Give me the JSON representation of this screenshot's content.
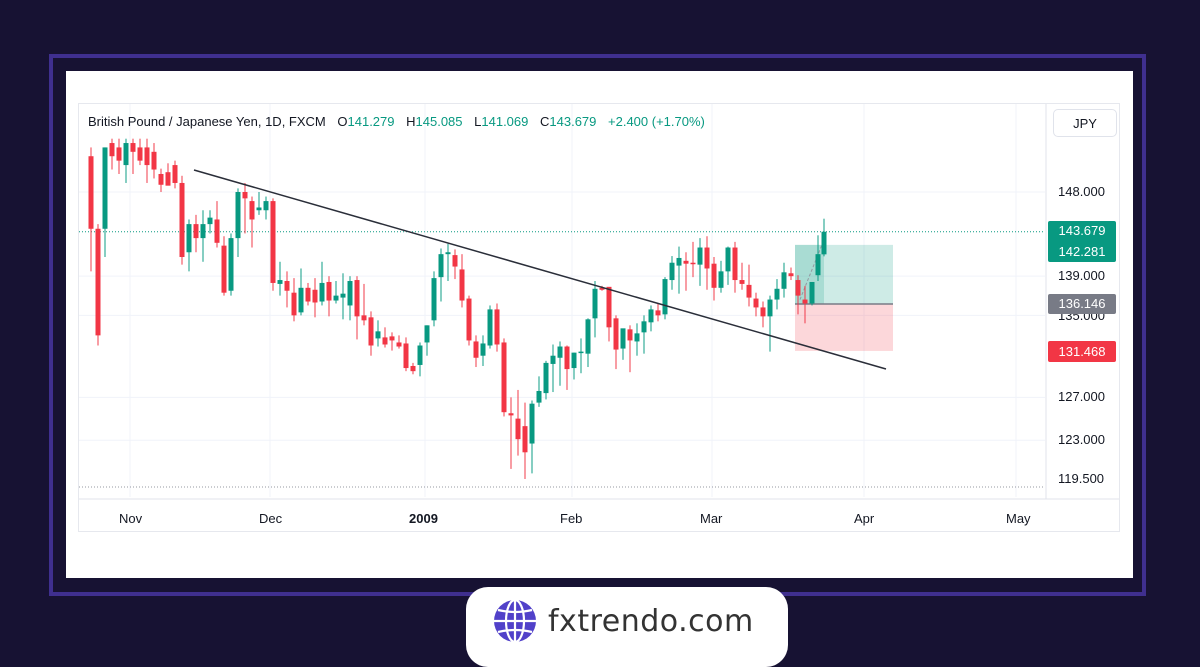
{
  "brand": {
    "text": "fxtrendo.com",
    "icon": "globe-icon"
  },
  "legend": {
    "symbol": "British Pound / Japanese Yen, 1D, FXCM",
    "o_label": "O",
    "o": "141.279",
    "h_label": "H",
    "h": "145.085",
    "l_label": "L",
    "l": "141.069",
    "c_label": "C",
    "c": "143.679",
    "change": "+2.400 (+1.70%)"
  },
  "currency_button": "JPY",
  "y_axis": {
    "ticks": [
      "148.000",
      "139.000",
      "135.000",
      "127.000",
      "123.000",
      "119.500"
    ]
  },
  "badges": {
    "last_price": "143.679",
    "entry_target": "142.281",
    "entry": "136.146",
    "stop": "131.468"
  },
  "x_axis": {
    "ticks": [
      "Nov",
      "Dec",
      "2009",
      "Feb",
      "Mar",
      "Apr",
      "May"
    ]
  },
  "colors": {
    "up": "#089981",
    "down": "#f23645",
    "frame": "#3f2f8f",
    "background": "#171233",
    "profit_zone": "#a8dcd6",
    "loss_zone": "#fcd5d7"
  },
  "chart_data": {
    "type": "candlestick",
    "title": "British Pound / Japanese Yen, 1D, FXCM",
    "ylabel": "JPY",
    "yscale": "log",
    "ylim": [
      118.5,
      152.5
    ],
    "x_ticks": [
      "Nov",
      "Dec",
      "2009",
      "Feb",
      "Mar",
      "Apr",
      "May"
    ],
    "y_ticks": [
      148.0,
      139.0,
      135.0,
      127.0,
      123.0,
      119.5
    ],
    "last": {
      "open": 141.279,
      "high": 145.085,
      "low": 141.069,
      "close": 143.679,
      "change": 2.4,
      "change_pct": 1.7
    },
    "trendline": {
      "from": {
        "x": 194,
        "price": 150.2
      },
      "to": {
        "x": 886,
        "price": 130.0
      }
    },
    "position": {
      "type": "long",
      "entry": 136.146,
      "target": 142.281,
      "stop": 131.468
    },
    "candles": [
      {
        "x": 91,
        "o": 152.0,
        "h": 153.0,
        "c": 144.0,
        "l": 139.5
      },
      {
        "x": 98,
        "o": 144.0,
        "h": 144.5,
        "c": 133.0,
        "l": 132.0
      },
      {
        "x": 105,
        "o": 144.0,
        "h": 153.0,
        "c": 153.0,
        "l": 141.0
      },
      {
        "x": 112,
        "o": 153.5,
        "h": 154.0,
        "c": 152.0,
        "l": 150.5
      },
      {
        "x": 119,
        "o": 153.0,
        "h": 154.0,
        "c": 151.5,
        "l": 150.0
      },
      {
        "x": 126,
        "o": 151.0,
        "h": 154.0,
        "c": 153.5,
        "l": 149.0
      },
      {
        "x": 133,
        "o": 153.5,
        "h": 154.0,
        "c": 152.5,
        "l": 150.0
      },
      {
        "x": 140,
        "o": 153.0,
        "h": 154.0,
        "c": 151.5,
        "l": 151.0
      },
      {
        "x": 147,
        "o": 153.0,
        "h": 154.0,
        "c": 151.0,
        "l": 149.0
      },
      {
        "x": 154,
        "o": 152.5,
        "h": 153.5,
        "c": 150.5,
        "l": 149.5
      },
      {
        "x": 161,
        "o": 150.0,
        "h": 150.6,
        "c": 148.8,
        "l": 148.0
      },
      {
        "x": 168,
        "o": 150.2,
        "h": 151.2,
        "c": 148.7,
        "l": 149.2
      },
      {
        "x": 175,
        "o": 151.0,
        "h": 151.5,
        "c": 149.0,
        "l": 148.4
      },
      {
        "x": 182,
        "o": 149.0,
        "h": 149.8,
        "c": 141.0,
        "l": 140.2
      },
      {
        "x": 189,
        "o": 141.5,
        "h": 145.0,
        "c": 144.5,
        "l": 139.5
      },
      {
        "x": 196,
        "o": 144.5,
        "h": 145.5,
        "c": 143.0,
        "l": 141.5
      },
      {
        "x": 203,
        "o": 143.0,
        "h": 146.0,
        "c": 144.5,
        "l": 140.5
      },
      {
        "x": 210,
        "o": 144.5,
        "h": 146.0,
        "c": 145.2,
        "l": 143.5
      },
      {
        "x": 217,
        "o": 145.0,
        "h": 147.0,
        "c": 142.5,
        "l": 142.0
      },
      {
        "x": 224,
        "o": 142.2,
        "h": 143.2,
        "c": 137.3,
        "l": 137.0
      },
      {
        "x": 231,
        "o": 137.5,
        "h": 143.5,
        "c": 143.0,
        "l": 137.0
      },
      {
        "x": 238,
        "o": 143.0,
        "h": 148.4,
        "c": 148.0,
        "l": 141.0
      },
      {
        "x": 245,
        "o": 148.0,
        "h": 149.0,
        "c": 147.3,
        "l": 143.5
      },
      {
        "x": 252,
        "o": 147.0,
        "h": 147.5,
        "c": 145.0,
        "l": 142.0
      },
      {
        "x": 259,
        "o": 146.0,
        "h": 148.0,
        "c": 146.3,
        "l": 145.5
      },
      {
        "x": 266,
        "o": 146.0,
        "h": 147.5,
        "c": 147.0,
        "l": 145.0
      },
      {
        "x": 273,
        "o": 147.0,
        "h": 147.3,
        "c": 138.3,
        "l": 137.5
      },
      {
        "x": 280,
        "o": 138.2,
        "h": 140.5,
        "c": 138.6,
        "l": 137.0
      },
      {
        "x": 287,
        "o": 138.5,
        "h": 139.5,
        "c": 137.5,
        "l": 135.8
      },
      {
        "x": 294,
        "o": 137.3,
        "h": 138.8,
        "c": 135.0,
        "l": 134.4
      },
      {
        "x": 301,
        "o": 135.3,
        "h": 139.8,
        "c": 137.8,
        "l": 135.0
      },
      {
        "x": 308,
        "o": 137.8,
        "h": 138.3,
        "c": 136.4,
        "l": 136.0
      },
      {
        "x": 315,
        "o": 137.6,
        "h": 138.8,
        "c": 136.3,
        "l": 134.8
      },
      {
        "x": 322,
        "o": 136.4,
        "h": 140.5,
        "c": 138.3,
        "l": 136.0
      },
      {
        "x": 329,
        "o": 138.4,
        "h": 139.0,
        "c": 136.5,
        "l": 134.9
      },
      {
        "x": 336,
        "o": 136.5,
        "h": 138.5,
        "c": 137.0,
        "l": 136.2
      },
      {
        "x": 343,
        "o": 136.8,
        "h": 139.3,
        "c": 137.2,
        "l": 134.6
      },
      {
        "x": 350,
        "o": 136.0,
        "h": 139.0,
        "c": 138.5,
        "l": 134.5
      },
      {
        "x": 357,
        "o": 138.6,
        "h": 139.0,
        "c": 134.9,
        "l": 132.6
      },
      {
        "x": 364,
        "o": 135.0,
        "h": 138.2,
        "c": 134.5,
        "l": 134.0
      },
      {
        "x": 371,
        "o": 134.8,
        "h": 135.4,
        "c": 132.0,
        "l": 131.0
      },
      {
        "x": 378,
        "o": 132.7,
        "h": 134.5,
        "c": 133.4,
        "l": 131.9
      },
      {
        "x": 385,
        "o": 132.8,
        "h": 133.8,
        "c": 132.1,
        "l": 131.8
      },
      {
        "x": 392,
        "o": 132.9,
        "h": 133.3,
        "c": 132.5,
        "l": 131.5
      },
      {
        "x": 399,
        "o": 132.3,
        "h": 133.0,
        "c": 131.9,
        "l": 131.7
      },
      {
        "x": 406,
        "o": 132.2,
        "h": 132.8,
        "c": 129.8,
        "l": 129.5
      },
      {
        "x": 413,
        "o": 130.0,
        "h": 130.3,
        "c": 129.5,
        "l": 129.2
      },
      {
        "x": 420,
        "o": 130.1,
        "h": 132.3,
        "c": 132.0,
        "l": 129.0
      },
      {
        "x": 427,
        "o": 132.3,
        "h": 134.0,
        "c": 134.0,
        "l": 131.0
      },
      {
        "x": 434,
        "o": 134.5,
        "h": 139.5,
        "c": 138.8,
        "l": 133.9
      },
      {
        "x": 441,
        "o": 138.9,
        "h": 141.9,
        "c": 141.3,
        "l": 136.4
      },
      {
        "x": 448,
        "o": 141.3,
        "h": 142.4,
        "c": 141.5,
        "l": 138.5
      },
      {
        "x": 455,
        "o": 141.2,
        "h": 141.8,
        "c": 140.0,
        "l": 138.7
      },
      {
        "x": 462,
        "o": 139.7,
        "h": 141.3,
        "c": 136.5,
        "l": 135.8
      },
      {
        "x": 469,
        "o": 136.7,
        "h": 137.0,
        "c": 132.5,
        "l": 132.0
      },
      {
        "x": 476,
        "o": 132.4,
        "h": 133.0,
        "c": 130.8,
        "l": 129.9
      },
      {
        "x": 483,
        "o": 131.0,
        "h": 133.0,
        "c": 132.2,
        "l": 130.0
      },
      {
        "x": 490,
        "o": 132.0,
        "h": 136.0,
        "c": 135.6,
        "l": 131.7
      },
      {
        "x": 497,
        "o": 135.6,
        "h": 136.2,
        "c": 132.1,
        "l": 131.4
      },
      {
        "x": 504,
        "o": 132.3,
        "h": 132.7,
        "c": 125.6,
        "l": 125.2
      },
      {
        "x": 511,
        "o": 125.5,
        "h": 127.0,
        "c": 125.3,
        "l": 120.4
      },
      {
        "x": 518,
        "o": 125.0,
        "h": 127.7,
        "c": 123.1,
        "l": 121.6
      },
      {
        "x": 525,
        "o": 124.3,
        "h": 126.5,
        "c": 121.9,
        "l": 119.5
      },
      {
        "x": 532,
        "o": 122.7,
        "h": 126.7,
        "c": 126.4,
        "l": 120.0
      },
      {
        "x": 539,
        "o": 126.5,
        "h": 129.0,
        "c": 127.6,
        "l": 126.1
      },
      {
        "x": 546,
        "o": 127.4,
        "h": 130.5,
        "c": 130.3,
        "l": 126.8
      },
      {
        "x": 553,
        "o": 130.2,
        "h": 132.1,
        "c": 131.0,
        "l": 127.5
      },
      {
        "x": 560,
        "o": 130.8,
        "h": 132.4,
        "c": 131.9,
        "l": 128.1
      },
      {
        "x": 567,
        "o": 131.9,
        "h": 132.0,
        "c": 129.7,
        "l": 127.7
      },
      {
        "x": 574,
        "o": 129.8,
        "h": 131.3,
        "c": 131.3,
        "l": 128.7
      },
      {
        "x": 581,
        "o": 131.3,
        "h": 132.7,
        "c": 131.4,
        "l": 129.3
      },
      {
        "x": 588,
        "o": 131.2,
        "h": 134.7,
        "c": 134.6,
        "l": 129.9
      },
      {
        "x": 595,
        "o": 134.7,
        "h": 138.5,
        "c": 137.7,
        "l": 132.8
      },
      {
        "x": 602,
        "o": 137.8,
        "h": 138.0,
        "c": 137.6,
        "l": 137.5
      },
      {
        "x": 609,
        "o": 137.9,
        "h": 137.8,
        "c": 133.8,
        "l": 132.4
      },
      {
        "x": 616,
        "o": 134.7,
        "h": 135.0,
        "c": 131.6,
        "l": 129.7
      },
      {
        "x": 623,
        "o": 131.7,
        "h": 133.5,
        "c": 133.7,
        "l": 130.6
      },
      {
        "x": 630,
        "o": 133.6,
        "h": 134.0,
        "c": 132.5,
        "l": 129.4
      },
      {
        "x": 637,
        "o": 132.4,
        "h": 134.2,
        "c": 133.2,
        "l": 131.0
      },
      {
        "x": 644,
        "o": 133.3,
        "h": 135.0,
        "c": 134.4,
        "l": 131.2
      },
      {
        "x": 651,
        "o": 134.3,
        "h": 136.0,
        "c": 135.6,
        "l": 133.4
      },
      {
        "x": 658,
        "o": 135.5,
        "h": 136.2,
        "c": 135.0,
        "l": 134.4
      },
      {
        "x": 665,
        "o": 135.1,
        "h": 138.9,
        "c": 138.7,
        "l": 134.6
      },
      {
        "x": 672,
        "o": 138.6,
        "h": 141.1,
        "c": 140.4,
        "l": 137.6
      },
      {
        "x": 679,
        "o": 140.1,
        "h": 142.1,
        "c": 140.9,
        "l": 137.2
      },
      {
        "x": 686,
        "o": 140.6,
        "h": 141.5,
        "c": 140.3,
        "l": 137.5
      },
      {
        "x": 693,
        "o": 140.4,
        "h": 142.6,
        "c": 140.3,
        "l": 138.9
      },
      {
        "x": 700,
        "o": 140.2,
        "h": 143.0,
        "c": 142.0,
        "l": 138.0
      },
      {
        "x": 707,
        "o": 142.0,
        "h": 143.2,
        "c": 139.8,
        "l": 137.6
      },
      {
        "x": 714,
        "o": 140.3,
        "h": 141.0,
        "c": 137.8,
        "l": 136.5
      },
      {
        "x": 721,
        "o": 137.8,
        "h": 140.6,
        "c": 139.5,
        "l": 137.3
      },
      {
        "x": 728,
        "o": 139.5,
        "h": 142.1,
        "c": 142.0,
        "l": 138.1
      },
      {
        "x": 735,
        "o": 142.0,
        "h": 142.6,
        "c": 138.6,
        "l": 137.3
      },
      {
        "x": 742,
        "o": 138.6,
        "h": 140.4,
        "c": 138.2,
        "l": 137.6
      },
      {
        "x": 749,
        "o": 138.1,
        "h": 140.2,
        "c": 136.8,
        "l": 135.9
      },
      {
        "x": 756,
        "o": 136.7,
        "h": 137.3,
        "c": 135.8,
        "l": 134.9
      },
      {
        "x": 763,
        "o": 135.8,
        "h": 136.4,
        "c": 134.9,
        "l": 133.8
      },
      {
        "x": 770,
        "o": 134.9,
        "h": 137.0,
        "c": 136.6,
        "l": 131.4
      },
      {
        "x": 777,
        "o": 136.6,
        "h": 138.7,
        "c": 137.7,
        "l": 135.6
      },
      {
        "x": 784,
        "o": 137.7,
        "h": 140.4,
        "c": 139.4,
        "l": 136.8
      },
      {
        "x": 791,
        "o": 139.3,
        "h": 139.9,
        "c": 139.0,
        "l": 138.6
      },
      {
        "x": 798,
        "o": 138.6,
        "h": 139.1,
        "c": 137.0,
        "l": 135.1
      },
      {
        "x": 805,
        "o": 136.6,
        "h": 138.0,
        "c": 136.2,
        "l": 134.2
      },
      {
        "x": 812,
        "o": 136.2,
        "h": 138.1,
        "c": 138.4,
        "l": 136.0
      },
      {
        "x": 818,
        "o": 139.1,
        "h": 143.3,
        "c": 141.3,
        "l": 138.5
      },
      {
        "x": 824,
        "o": 141.279,
        "h": 145.085,
        "c": 143.679,
        "l": 141.069
      }
    ]
  }
}
